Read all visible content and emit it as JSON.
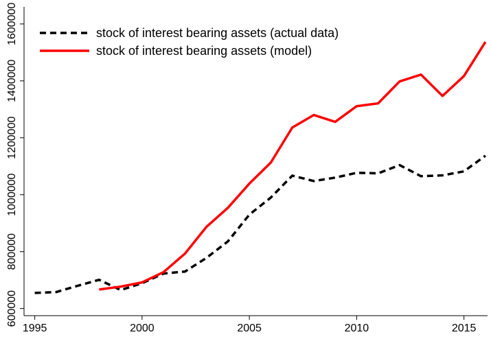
{
  "chart_data": {
    "type": "line",
    "x": [
      1995,
      1996,
      1997,
      1998,
      1999,
      2000,
      2001,
      2002,
      2003,
      2004,
      2005,
      2006,
      2007,
      2008,
      2009,
      2010,
      2011,
      2012,
      2013,
      2014,
      2015,
      2016
    ],
    "series": [
      {
        "name": "stock of interest bearing assets (actual data)",
        "color": "#000000",
        "dash": true,
        "values": [
          655000,
          658000,
          680000,
          701000,
          665000,
          689000,
          723000,
          730000,
          778000,
          836000,
          930000,
          990000,
          1067000,
          1048000,
          1060000,
          1077000,
          1075000,
          1104000,
          1065000,
          1068000,
          1082000,
          1137000
        ]
      },
      {
        "name": "stock of interest bearing assets (model)",
        "color": "#ff0000",
        "dash": false,
        "values": [
          null,
          null,
          null,
          667000,
          677000,
          692000,
          728000,
          793000,
          887000,
          954000,
          1039000,
          1113000,
          1236000,
          1280000,
          1256000,
          1311000,
          1321000,
          1398000,
          1422000,
          1347000,
          1417000,
          1537000
        ]
      }
    ],
    "xlim": [
      1994.5,
      2016.1
    ],
    "xticks": [
      1995,
      2000,
      2005,
      2010,
      2015
    ],
    "ylim": [
      575000,
      1660000
    ],
    "yticks": [
      600000,
      800000,
      1000000,
      1200000,
      1400000,
      1600000
    ],
    "legend": "top-left",
    "grid": false
  }
}
